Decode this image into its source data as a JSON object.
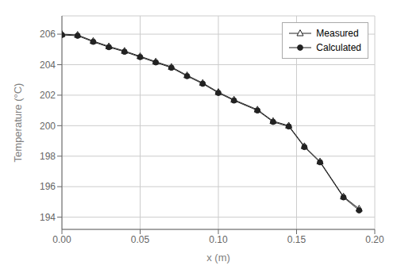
{
  "chart_data": {
    "type": "line",
    "xlabel": "x (m)",
    "ylabel": "Temperature (°C)",
    "x": [
      0.0,
      0.01,
      0.02,
      0.03,
      0.04,
      0.05,
      0.06,
      0.07,
      0.08,
      0.09,
      0.1,
      0.11,
      0.125,
      0.135,
      0.145,
      0.155,
      0.165,
      0.18,
      0.19
    ],
    "series": [
      {
        "name": "Measured",
        "color": "#222222",
        "marker": "triangle",
        "values": [
          206.0,
          205.95,
          205.55,
          205.2,
          204.9,
          204.55,
          204.2,
          203.85,
          203.3,
          202.8,
          202.2,
          201.7,
          201.05,
          200.3,
          200.0,
          198.65,
          197.65,
          195.35,
          194.55
        ]
      },
      {
        "name": "Calculated",
        "color": "#222222",
        "marker": "circle",
        "values": [
          205.95,
          205.9,
          205.5,
          205.15,
          204.85,
          204.5,
          204.15,
          203.8,
          203.25,
          202.75,
          202.15,
          201.65,
          201.0,
          200.25,
          199.95,
          198.6,
          197.6,
          195.3,
          194.45
        ]
      }
    ],
    "xlim": [
      0.0,
      0.2
    ],
    "ylim": [
      193.2,
      207.2
    ],
    "xticks": [
      {
        "value": 0.0,
        "label": "0.00"
      },
      {
        "value": 0.05,
        "label": "0.05"
      },
      {
        "value": 0.1,
        "label": "0.10"
      },
      {
        "value": 0.15,
        "label": "0.15"
      },
      {
        "value": 0.2,
        "label": "0.20"
      }
    ],
    "yticks": [
      194,
      196,
      198,
      200,
      202,
      204,
      206
    ],
    "grid": true,
    "legend": "upper right"
  }
}
